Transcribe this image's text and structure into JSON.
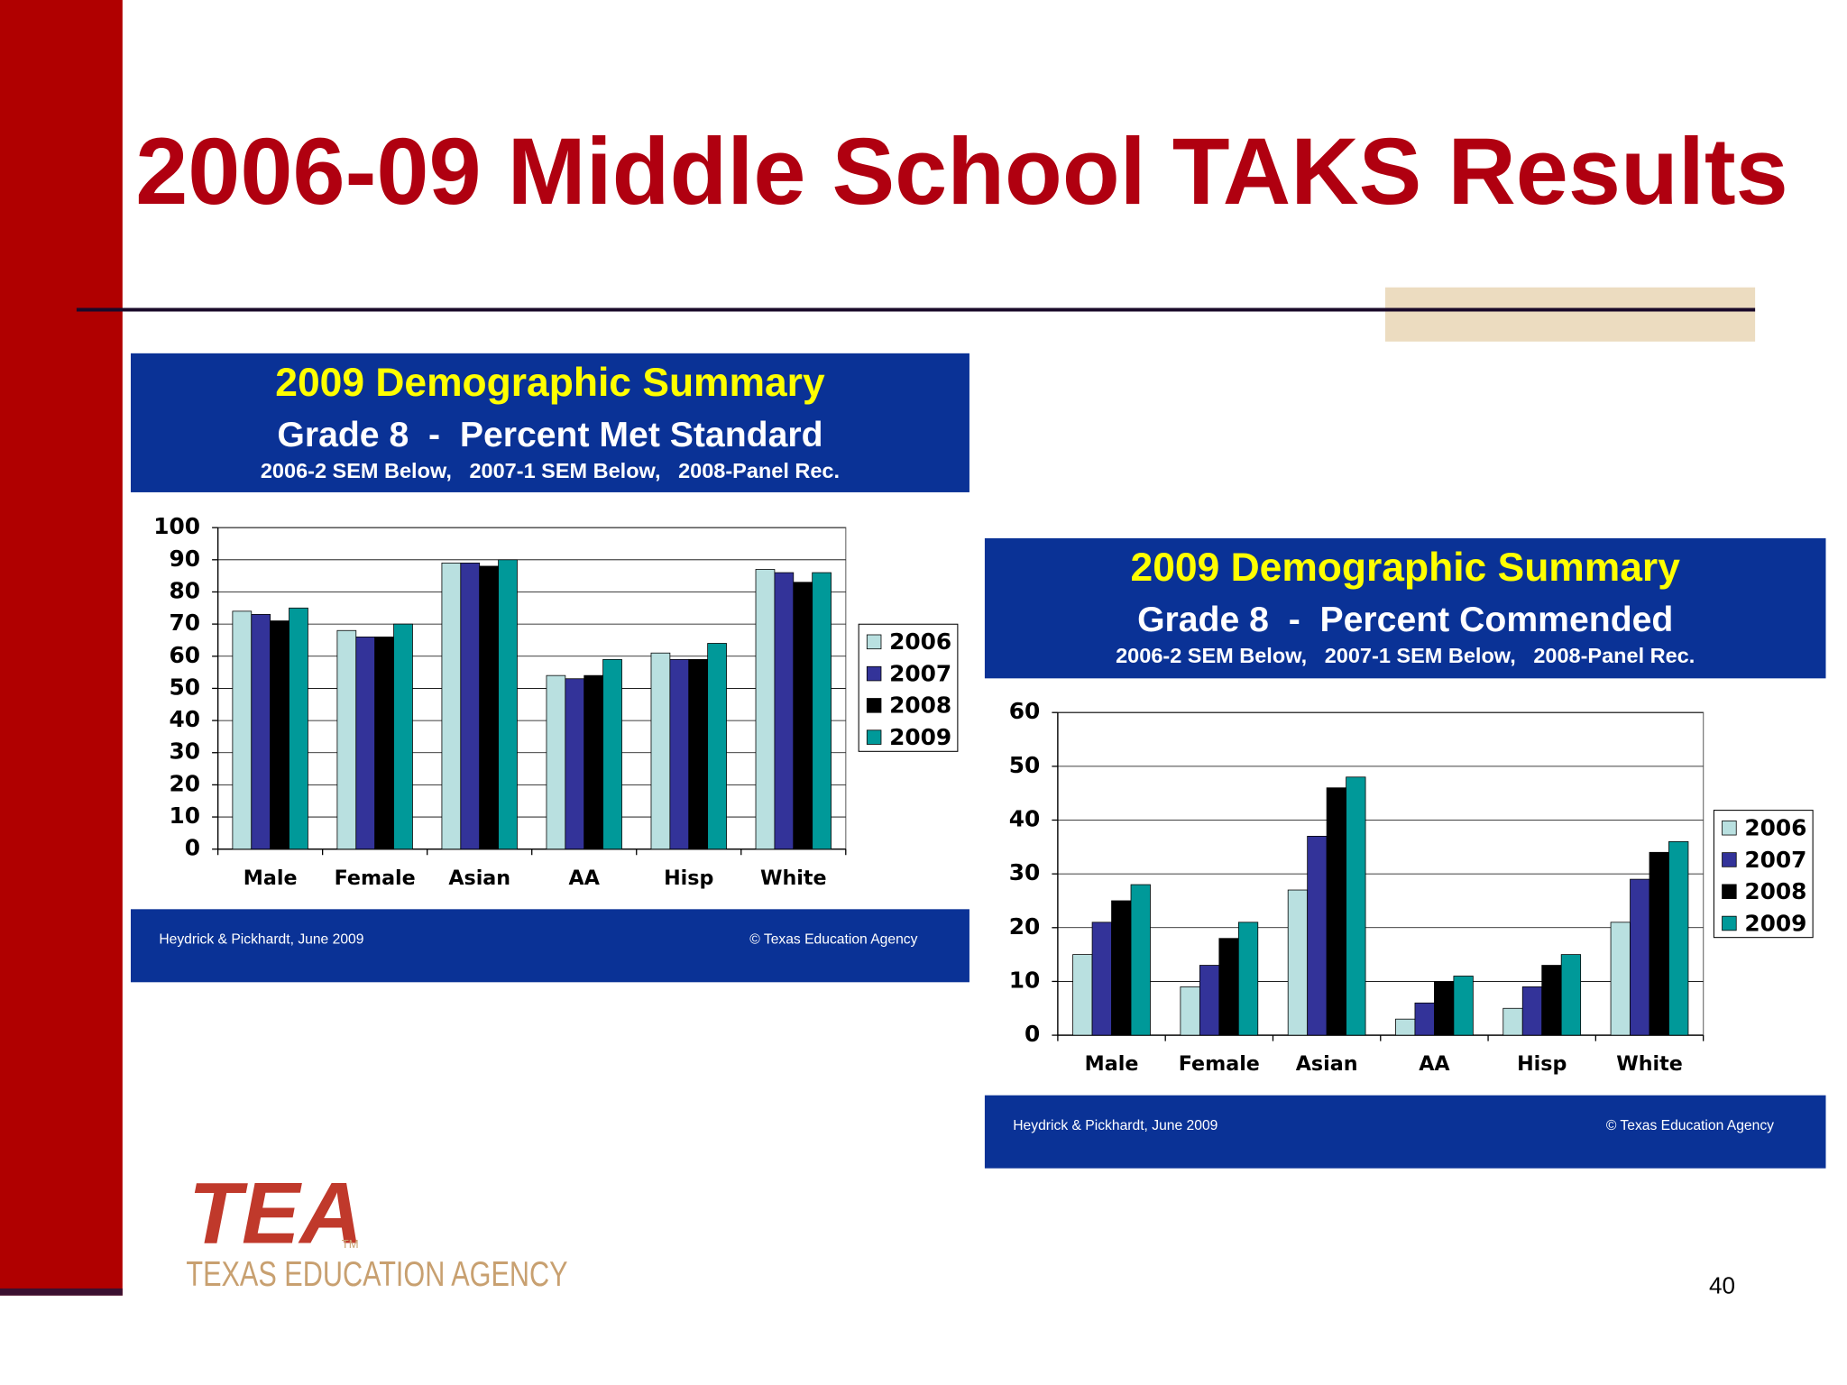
{
  "title": "2006-09 Middle School TAKS Results",
  "page_number": "40",
  "logo": {
    "mark": "TEA",
    "trademark": "TM",
    "name": "TEXAS EDUCATION AGENCY"
  },
  "chart_data": [
    {
      "type": "bar",
      "title": "2009 Demographic Summary",
      "subtitle": "Grade 8  -  Percent Met Standard",
      "note": "2006-2 SEM Below,   2007-1 SEM Below,   2008-Panel Rec.",
      "categories": [
        "Male",
        "Female",
        "Asian",
        "AA",
        "Hisp",
        "White"
      ],
      "series": [
        {
          "name": "2006",
          "color": "#b9e0e0",
          "values": [
            74,
            68,
            89,
            54,
            61,
            87
          ]
        },
        {
          "name": "2007",
          "color": "#333399",
          "values": [
            73,
            66,
            89,
            53,
            59,
            86
          ]
        },
        {
          "name": "2008",
          "color": "#000000",
          "values": [
            71,
            66,
            88,
            54,
            59,
            83
          ]
        },
        {
          "name": "2009",
          "color": "#009999",
          "values": [
            75,
            70,
            90,
            59,
            64,
            86
          ]
        }
      ],
      "ylim": [
        0,
        100
      ],
      "yticks": [
        0,
        10,
        20,
        30,
        40,
        50,
        60,
        70,
        80,
        90,
        100
      ],
      "grid": true,
      "legend": "right",
      "footer_left": "Heydrick & Pickhardt, June 2009",
      "footer_right": "© Texas Education Agency"
    },
    {
      "type": "bar",
      "title": "2009 Demographic Summary",
      "subtitle": "Grade 8  -  Percent Commended",
      "note": "2006-2 SEM Below,   2007-1 SEM Below,   2008-Panel Rec.",
      "categories": [
        "Male",
        "Female",
        "Asian",
        "AA",
        "Hisp",
        "White"
      ],
      "series": [
        {
          "name": "2006",
          "color": "#b9e0e0",
          "values": [
            15,
            9,
            27,
            3,
            5,
            21
          ]
        },
        {
          "name": "2007",
          "color": "#333399",
          "values": [
            21,
            13,
            37,
            6,
            9,
            29
          ]
        },
        {
          "name": "2008",
          "color": "#000000",
          "values": [
            25,
            18,
            46,
            10,
            13,
            34
          ]
        },
        {
          "name": "2009",
          "color": "#009999",
          "values": [
            28,
            21,
            48,
            11,
            15,
            36
          ]
        }
      ],
      "ylim": [
        0,
        60
      ],
      "yticks": [
        0,
        10,
        20,
        30,
        40,
        50,
        60
      ],
      "grid": true,
      "legend": "right",
      "footer_left": "Heydrick & Pickhardt, June 2009",
      "footer_right": "© Texas Education Agency"
    }
  ]
}
